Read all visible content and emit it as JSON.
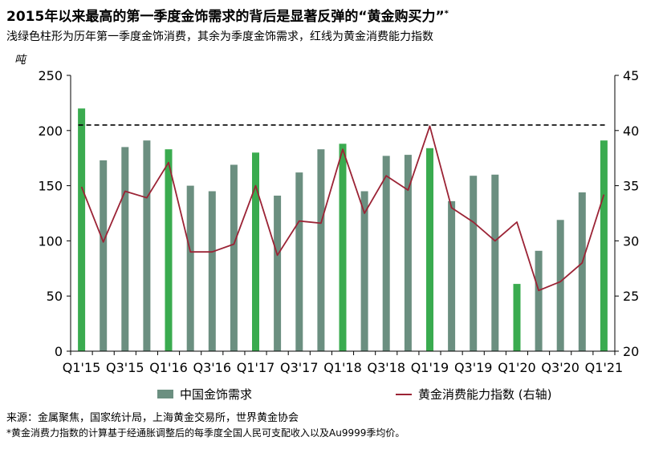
{
  "title": "2015年以来最高的第一季度金饰需求的背后是显著反弹的“黄金购买力”",
  "title_mark": "*",
  "subtitle": "浅绿色柱形为历年第一季度金饰消费，其余为季度金饰需求，红线为黄金消费能力指数",
  "unit": "吨",
  "source": "来源：金属聚焦，国家统计局，上海黄金交易所，世界黄金协会",
  "footnote": "*黄金消费力指数的计算基于经通胀调整后的每季度全国人民可支配收入以及Au9999季均价。",
  "colors": {
    "bar_default": "#6b8f80",
    "bar_q1": "#3aab4f",
    "line": "#9b2335",
    "dashed": "#000000",
    "axis": "#000000"
  },
  "chart_data": {
    "type": "bar+line",
    "categories": [
      "Q1'15",
      "Q2'15",
      "Q3'15",
      "Q4'15",
      "Q1'16",
      "Q2'16",
      "Q3'16",
      "Q4'16",
      "Q1'17",
      "Q2'17",
      "Q3'17",
      "Q4'17",
      "Q1'18",
      "Q2'18",
      "Q3'18",
      "Q4'18",
      "Q1'19",
      "Q2'19",
      "Q3'19",
      "Q4'19",
      "Q1'20",
      "Q2'20",
      "Q3'20",
      "Q4'20",
      "Q1'21"
    ],
    "x_tick_labels": [
      "Q1'15",
      "Q3'15",
      "Q1'16",
      "Q3'16",
      "Q1'17",
      "Q3'17",
      "Q1'18",
      "Q3'18",
      "Q1'19",
      "Q3'19",
      "Q1'20",
      "Q3'20",
      "Q1'21"
    ],
    "series": [
      {
        "name": "中国金饰需求",
        "type": "bar",
        "axis": "left",
        "values": [
          220,
          173,
          185,
          191,
          183,
          150,
          145,
          169,
          180,
          141,
          162,
          183,
          188,
          145,
          177,
          178,
          184,
          136,
          159,
          160,
          61,
          91,
          119,
          144,
          191
        ],
        "highlight_first_quarters": true
      },
      {
        "name": "黄金消费能力指数 (右轴)",
        "type": "line",
        "axis": "right",
        "values": [
          34.9,
          29.9,
          34.5,
          33.9,
          37.1,
          29.0,
          29.0,
          29.7,
          35.0,
          28.7,
          31.8,
          31.6,
          38.3,
          32.5,
          35.9,
          34.6,
          40.4,
          33.0,
          31.7,
          30.0,
          31.7,
          25.5,
          26.3,
          28.0,
          34.2
        ]
      }
    ],
    "reference_line": {
      "axis": "right",
      "value": 40.5,
      "style": "dashed"
    },
    "ylim": [
      0,
      250
    ],
    "yticks": [
      0,
      50,
      100,
      150,
      200,
      250
    ],
    "y2lim": [
      20,
      45
    ],
    "y2ticks": [
      20,
      25,
      30,
      35,
      40,
      45
    ],
    "grid": false,
    "legend_position": "bottom"
  }
}
